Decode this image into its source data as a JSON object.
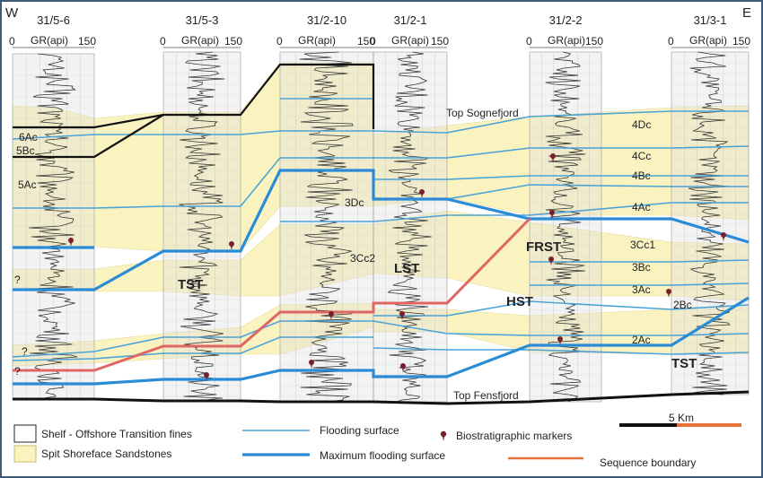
{
  "directions": {
    "west": "W",
    "east": "E"
  },
  "wells": [
    {
      "name": "31/5-6",
      "scale_min": "0",
      "scale_label": "GR(api)",
      "scale_max": "150"
    },
    {
      "name": "31/5-3",
      "scale_min": "0",
      "scale_label": "GR(api)",
      "scale_max": "150"
    },
    {
      "name": "31/2-10",
      "scale_min": "0",
      "scale_label": "GR(api)",
      "scale_max": "150"
    },
    {
      "name": "31/2-1",
      "scale_min": "0",
      "scale_label": "GR(api)",
      "scale_max": "150"
    },
    {
      "name": "31/2-2",
      "scale_min": "0",
      "scale_label": "GR(api)",
      "scale_max": "150"
    },
    {
      "name": "31/3-1",
      "scale_min": "0",
      "scale_label": "GR(api)",
      "scale_max": "150"
    }
  ],
  "unit_labels": {
    "u6Ac": "6Ac",
    "u5Bc": "5Bc",
    "u5Ac": "5Ac",
    "u4Dc": "4Dc",
    "u4Cc": "4Cc",
    "u4Bc": "4Bc",
    "u4Ac": "4Ac",
    "u3Dc": "3Dc",
    "u3Cc2": "3Cc2",
    "u3Cc1": "3Cc1",
    "u3Bc": "3Bc",
    "u3Ac": "3Ac",
    "u2Bc": "2Bc",
    "u2Ac": "2Ac"
  },
  "systems_tracts": {
    "tst_west": "TST",
    "lst": "LST",
    "frst": "FRST",
    "hst": "HST",
    "tst_east": "TST"
  },
  "surfaces": {
    "top": "Top Sognefjord",
    "base": "Top Fensfjord"
  },
  "question_marks": [
    "?",
    "?",
    "?"
  ],
  "scale_bar": {
    "label": "5 Km"
  },
  "legend": {
    "shelf": "Shelf - Offshore Transition fines",
    "spit": "Spit Shoreface Sandstones",
    "flooding": "Flooding surface",
    "max_flooding": "Maximum flooding surface",
    "markers": "Biostratigraphic markers",
    "sequence": "Sequence boundary"
  },
  "colors": {
    "sand": "#faf3c0",
    "flooding": "#4aa3d8",
    "max_flooding": "#2a8bd6",
    "sequence": "#e06666",
    "marker": "#7a1f2b",
    "frame": "#3f5a7a"
  }
}
